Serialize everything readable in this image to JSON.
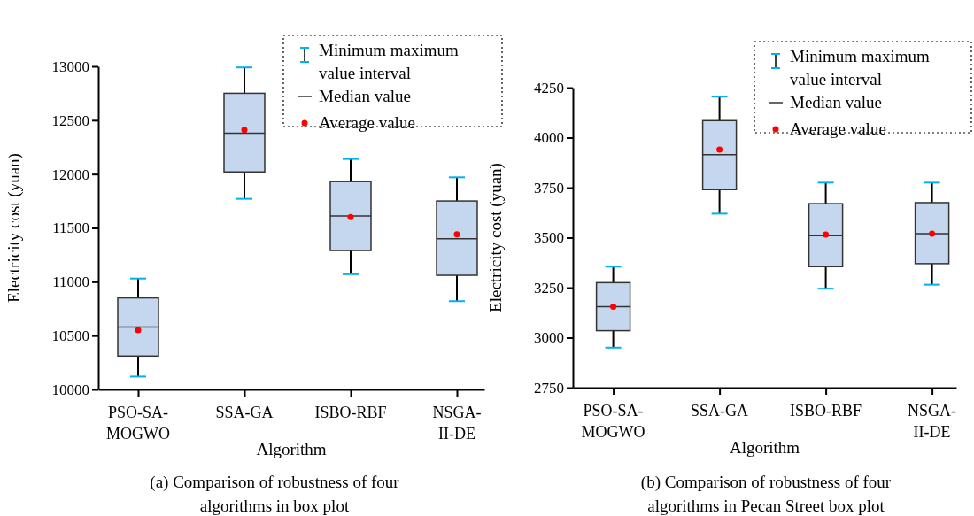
{
  "chart_data": [
    {
      "type": "box",
      "title": "(a) Comparison of robustness of four algorithms in box plot",
      "xlabel": "Algorithm",
      "ylabel": "Electricity cost (yuan)",
      "categories": [
        "PSO-SA-MOGWO",
        "SSA-GA",
        "ISBO-RBF",
        "NSGA-II-DE"
      ],
      "series": [
        {
          "type": "box",
          "color": "#c5d7ee",
          "boxes": [
            {
              "low": 10120,
              "q1": 10310,
              "median": 10580,
              "q3": 10850,
              "high": 11030
            },
            {
              "low": 11770,
              "q1": 12020,
              "median": 12380,
              "q3": 12750,
              "high": 12990
            },
            {
              "low": 11070,
              "q1": 11290,
              "median": 11610,
              "q3": 11930,
              "high": 12140
            },
            {
              "low": 10820,
              "q1": 11060,
              "median": 11400,
              "q3": 11750,
              "high": 11970
            }
          ]
        },
        {
          "type": "scatter",
          "name": "Average value",
          "color": "#ff0000",
          "x": [
            "PSO-SA-MOGWO",
            "SSA-GA",
            "ISBO-RBF",
            "NSGA-II-DE"
          ],
          "values": [
            10550,
            12410,
            11600,
            11440
          ]
        }
      ],
      "annotations": [
        "Minimum maximum value interval",
        "Median value"
      ],
      "ylim": [
        10000,
        13000
      ],
      "yticks": [
        10000,
        10500,
        11000,
        11500,
        12000,
        12500,
        13000
      ],
      "legend": "top right",
      "grid": false
    },
    {
      "type": "box",
      "title": "(b) Comparison of robustness of four algorithms in Pecan Street box plot",
      "xlabel": "Algorithm",
      "ylabel": "Electricity cost (yuan)",
      "categories": [
        "PSO-SA-MOGWO",
        "SSA-GA",
        "ISBO-RBF",
        "NSGA-II-DE"
      ],
      "series": [
        {
          "type": "box",
          "color": "#c5d7ee",
          "boxes": [
            {
              "low": 2950,
              "q1": 3035,
              "median": 3155,
              "q3": 3275,
              "high": 3355
            },
            {
              "low": 3620,
              "q1": 3740,
              "median": 3915,
              "q3": 4085,
              "high": 4205
            },
            {
              "low": 3245,
              "q1": 3355,
              "median": 3510,
              "q3": 3670,
              "high": 3775
            },
            {
              "low": 3265,
              "q1": 3370,
              "median": 3520,
              "q3": 3675,
              "high": 3775
            }
          ]
        },
        {
          "type": "scatter",
          "name": "Average value",
          "color": "#ff0000",
          "x": [
            "PSO-SA-MOGWO",
            "SSA-GA",
            "ISBO-RBF",
            "NSGA-II-DE"
          ],
          "values": [
            3155,
            3940,
            3515,
            3520
          ]
        }
      ],
      "annotations": [
        "Minimum maximum value interval",
        "Median value"
      ],
      "ylim": [
        2750,
        4250
      ],
      "yticks": [
        2750,
        3000,
        3250,
        3500,
        3750,
        4000,
        4250
      ],
      "legend": "top right",
      "grid": false
    }
  ]
}
